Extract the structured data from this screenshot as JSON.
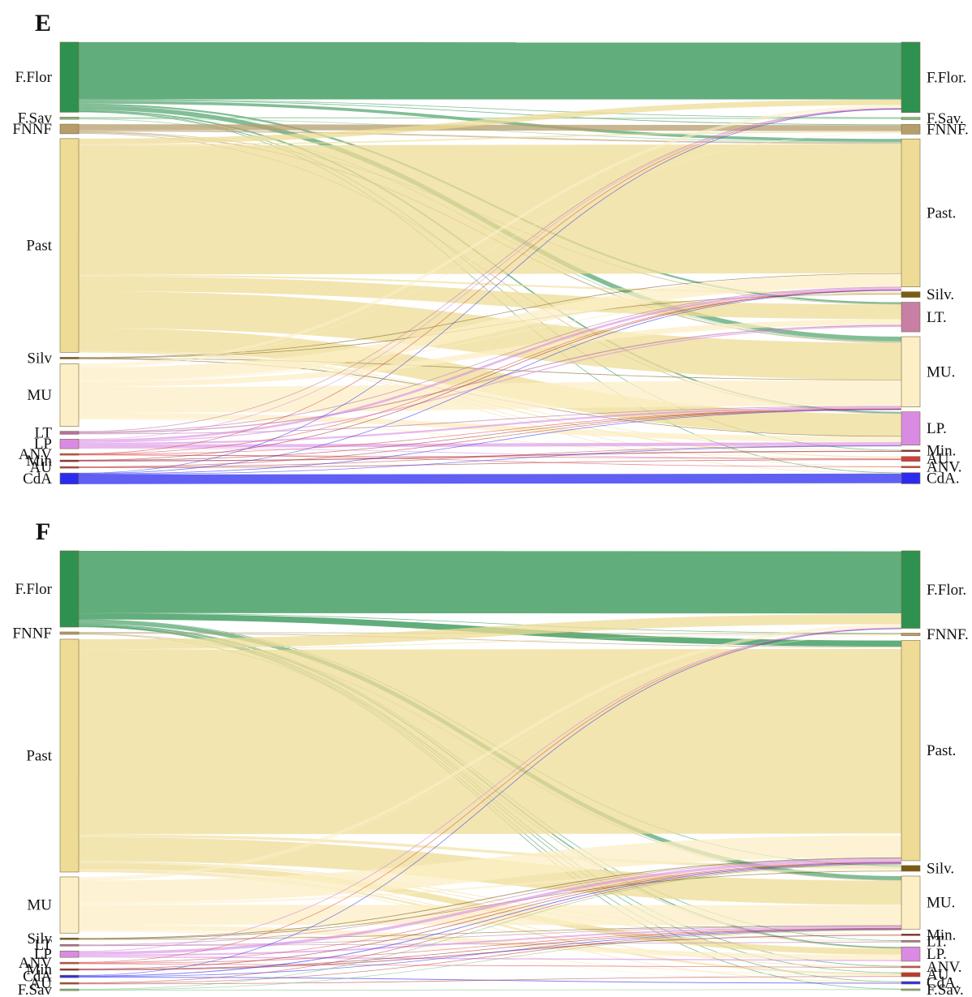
{
  "panels": [
    {
      "label": "E",
      "left_nodes": [
        {
          "id": "F.Flor",
          "label": "F.Flor",
          "color": "#2e9150",
          "value": 19
        },
        {
          "id": "F.Sav",
          "label": "F.Sav",
          "color": "#7cbf84",
          "value": 0.6
        },
        {
          "id": "FNNF",
          "label": "FNNF",
          "color": "#b69e6c",
          "value": 2.6
        },
        {
          "id": "Past",
          "label": "Past",
          "color": "#eedc96",
          "value": 58
        },
        {
          "id": "Silv",
          "label": "Silv",
          "color": "#7a5b14",
          "value": 0.4
        },
        {
          "id": "MU",
          "label": "MU",
          "color": "#fcefc6",
          "value": 17
        },
        {
          "id": "LT",
          "label": "LT",
          "color": "#b86fa2",
          "value": 0.8
        },
        {
          "id": "LP",
          "label": "LP",
          "color": "#d98be4",
          "value": 2.6
        },
        {
          "id": "ANV",
          "label": "ANV",
          "color": "#d94545",
          "value": 0.4
        },
        {
          "id": "Min",
          "label": "Min",
          "color": "#9c2030",
          "value": 0.4
        },
        {
          "id": "AU",
          "label": "AU",
          "color": "#b83c3c",
          "value": 0.4
        },
        {
          "id": "CdA",
          "label": "CdA",
          "color": "#2b2bf0",
          "value": 3
        }
      ],
      "right_nodes": [
        {
          "id": "F.Flor",
          "label": "F.Flor.",
          "color": "#2e9150",
          "value": 19
        },
        {
          "id": "F.Sav",
          "label": "F.Sav.",
          "color": "#7cbf84",
          "value": 0.6
        },
        {
          "id": "FNNF",
          "label": "FNNF.",
          "color": "#b69e6c",
          "value": 2.6
        },
        {
          "id": "Past",
          "label": "Past.",
          "color": "#eedc96",
          "value": 40
        },
        {
          "id": "Silv",
          "label": "Silv.",
          "color": "#7a5b14",
          "value": 1.5
        },
        {
          "id": "LT",
          "label": "LT.",
          "color": "#c77fa6",
          "value": 8
        },
        {
          "id": "MU",
          "label": "MU.",
          "color": "#fcefc6",
          "value": 19
        },
        {
          "id": "LP",
          "label": "LP.",
          "color": "#d98be4",
          "value": 9
        },
        {
          "id": "Min",
          "label": "Min.",
          "color": "#9c2030",
          "value": 0.4
        },
        {
          "id": "AU",
          "label": "AU.",
          "color": "#d33d3d",
          "value": 1.3
        },
        {
          "id": "ANV",
          "label": "ANV.",
          "color": "#d94545",
          "value": 0.4
        },
        {
          "id": "CdA",
          "label": "CdA.",
          "color": "#2b2bf0",
          "value": 3
        }
      ],
      "flows": [
        [
          "F.Flor",
          "F.Flor",
          15.5
        ],
        [
          "F.Flor",
          "Past",
          0.8
        ],
        [
          "F.Flor",
          "MU",
          1.2
        ],
        [
          "F.Flor",
          "LT",
          0.5
        ],
        [
          "F.Flor",
          "LP",
          0.4
        ],
        [
          "F.Flor",
          "FNNF",
          0.2
        ],
        [
          "F.Flor",
          "F.Sav",
          0.15
        ],
        [
          "F.Flor",
          "Min",
          0.1
        ],
        [
          "F.Flor",
          "CdA",
          0.15
        ],
        [
          "F.Sav",
          "F.Sav",
          0.3
        ],
        [
          "F.Sav",
          "Past",
          0.15
        ],
        [
          "F.Sav",
          "MU",
          0.15
        ],
        [
          "FNNF",
          "FNNF",
          1.6
        ],
        [
          "FNNF",
          "Past",
          0.4
        ],
        [
          "FNNF",
          "MU",
          0.3
        ],
        [
          "FNNF",
          "LP",
          0.2
        ],
        [
          "FNNF",
          "LT",
          0.1
        ],
        [
          "Past",
          "Past",
          35
        ],
        [
          "Past",
          "MU",
          10
        ],
        [
          "Past",
          "LT",
          4
        ],
        [
          "Past",
          "LP",
          6
        ],
        [
          "Past",
          "F.Flor",
          1.5
        ],
        [
          "Past",
          "Silv",
          0.5
        ],
        [
          "Past",
          "FNNF",
          0.4
        ],
        [
          "Past",
          "AU",
          0.3
        ],
        [
          "Past",
          "ANV",
          0.1
        ],
        [
          "Past",
          "Min",
          0.1
        ],
        [
          "Past",
          "CdA",
          0.1
        ],
        [
          "Silv",
          "Silv",
          0.15
        ],
        [
          "Silv",
          "Past",
          0.1
        ],
        [
          "Silv",
          "MU",
          0.08
        ],
        [
          "Silv",
          "LP",
          0.07
        ],
        [
          "MU",
          "MU",
          7
        ],
        [
          "MU",
          "Past",
          3.5
        ],
        [
          "MU",
          "LT",
          1.5
        ],
        [
          "MU",
          "LP",
          1.5
        ],
        [
          "MU",
          "F.Flor",
          0.8
        ],
        [
          "MU",
          "Silv",
          0.3
        ],
        [
          "MU",
          "AU",
          0.3
        ],
        [
          "MU",
          "FNNF",
          0.2
        ],
        [
          "LT",
          "LT",
          0.3
        ],
        [
          "LT",
          "Past",
          0.2
        ],
        [
          "LT",
          "MU",
          0.2
        ],
        [
          "LT",
          "F.Flor",
          0.1
        ],
        [
          "LP",
          "LP",
          0.9
        ],
        [
          "LP",
          "Past",
          0.6
        ],
        [
          "LP",
          "MU",
          0.5
        ],
        [
          "LP",
          "LT",
          0.3
        ],
        [
          "LP",
          "F.Flor",
          0.1
        ],
        [
          "LP",
          "AU",
          0.1
        ],
        [
          "ANV",
          "ANV",
          0.1
        ],
        [
          "ANV",
          "Past",
          0.1
        ],
        [
          "ANV",
          "MU",
          0.1
        ],
        [
          "ANV",
          "F.Flor",
          0.05
        ],
        [
          "ANV",
          "AU",
          0.05
        ],
        [
          "Min",
          "Min",
          0.25
        ],
        [
          "Min",
          "Past",
          0.05
        ],
        [
          "Min",
          "MU",
          0.05
        ],
        [
          "AU",
          "AU",
          0.2
        ],
        [
          "AU",
          "MU",
          0.1
        ],
        [
          "AU",
          "LP",
          0.1
        ],
        [
          "CdA",
          "CdA",
          2.6
        ],
        [
          "CdA",
          "F.Flor",
          0.1
        ],
        [
          "CdA",
          "Past",
          0.1
        ],
        [
          "CdA",
          "MU",
          0.1
        ],
        [
          "CdA",
          "LP",
          0.1
        ]
      ]
    },
    {
      "label": "F",
      "left_nodes": [
        {
          "id": "F.Flor",
          "label": "F.Flor",
          "color": "#2e9150",
          "value": 19
        },
        {
          "id": "FNNF",
          "label": "FNNF",
          "color": "#b69e6c",
          "value": 0.6
        },
        {
          "id": "Past",
          "label": "Past",
          "color": "#eedc96",
          "value": 58
        },
        {
          "id": "MU",
          "label": "MU",
          "color": "#fcefc6",
          "value": 14
        },
        {
          "id": "Silv",
          "label": "Silv",
          "color": "#7a5b14",
          "value": 0.4
        },
        {
          "id": "LT",
          "label": "LT",
          "color": "#b86fa2",
          "value": 0.4
        },
        {
          "id": "LP",
          "label": "LP",
          "color": "#d98be4",
          "value": 1.6
        },
        {
          "id": "ANV",
          "label": "ANV",
          "color": "#d94545",
          "value": 0.4
        },
        {
          "id": "Min",
          "label": "Min",
          "color": "#9c2030",
          "value": 0.4
        },
        {
          "id": "CdA",
          "label": "CdA",
          "color": "#2b2bf0",
          "value": 0.6
        },
        {
          "id": "AU",
          "label": "AU",
          "color": "#b83c3c",
          "value": 0.4
        },
        {
          "id": "F.Sav",
          "label": "F.Sav",
          "color": "#7cbf84",
          "value": 0.4
        }
      ],
      "right_nodes": [
        {
          "id": "F.Flor",
          "label": "F.Flor.",
          "color": "#2e9150",
          "value": 19
        },
        {
          "id": "FNNF",
          "label": "FNNF.",
          "color": "#b69e6c",
          "value": 0.6
        },
        {
          "id": "Past",
          "label": "Past.",
          "color": "#eedc96",
          "value": 54
        },
        {
          "id": "Silv",
          "label": "Silv.",
          "color": "#7a5b14",
          "value": 1.4
        },
        {
          "id": "MU",
          "label": "MU.",
          "color": "#fcefc6",
          "value": 13
        },
        {
          "id": "Min",
          "label": "Min.",
          "color": "#9c2030",
          "value": 0.4
        },
        {
          "id": "LT",
          "label": "LT.",
          "color": "#b86fa2",
          "value": 0.4
        },
        {
          "id": "LP",
          "label": "LP.",
          "color": "#d98be4",
          "value": 3.5
        },
        {
          "id": "ANV",
          "label": "ANV.",
          "color": "#d94545",
          "value": 0.4
        },
        {
          "id": "AU",
          "label": "AU.",
          "color": "#c0392b",
          "value": 1
        },
        {
          "id": "CdA",
          "label": "CdA.",
          "color": "#2b2bf0",
          "value": 0.6
        },
        {
          "id": "F.Sav",
          "label": "F.Sav.",
          "color": "#7cbf84",
          "value": 0.4
        }
      ],
      "flows": [
        [
          "F.Flor",
          "F.Flor",
          15.5
        ],
        [
          "F.Flor",
          "Past",
          1.5
        ],
        [
          "F.Flor",
          "MU",
          1.0
        ],
        [
          "F.Flor",
          "LP",
          0.3
        ],
        [
          "F.Flor",
          "FNNF",
          0.1
        ],
        [
          "F.Flor",
          "Silv",
          0.1
        ],
        [
          "F.Flor",
          "LT",
          0.1
        ],
        [
          "F.Flor",
          "ANV",
          0.1
        ],
        [
          "F.Flor",
          "F.Sav",
          0.1
        ],
        [
          "F.Flor",
          "CdA",
          0.1
        ],
        [
          "F.Flor",
          "AU",
          0.1
        ],
        [
          "FNNF",
          "FNNF",
          0.2
        ],
        [
          "FNNF",
          "Past",
          0.2
        ],
        [
          "FNNF",
          "MU",
          0.1
        ],
        [
          "FNNF",
          "LP",
          0.1
        ],
        [
          "Past",
          "Past",
          46
        ],
        [
          "Past",
          "MU",
          6
        ],
        [
          "Past",
          "F.Flor",
          2.5
        ],
        [
          "Past",
          "LP",
          1.5
        ],
        [
          "Past",
          "Silv",
          0.7
        ],
        [
          "Past",
          "AU",
          0.5
        ],
        [
          "Past",
          "Min",
          0.2
        ],
        [
          "Past",
          "LT",
          0.2
        ],
        [
          "Past",
          "ANV",
          0.2
        ],
        [
          "Past",
          "CdA",
          0.1
        ],
        [
          "Past",
          "FNNF",
          0.1
        ],
        [
          "MU",
          "MU",
          5
        ],
        [
          "MU",
          "Past",
          5.5
        ],
        [
          "MU",
          "LP",
          1.3
        ],
        [
          "MU",
          "F.Flor",
          0.8
        ],
        [
          "MU",
          "Silv",
          0.5
        ],
        [
          "MU",
          "AU",
          0.3
        ],
        [
          "MU",
          "FNNF",
          0.1
        ],
        [
          "MU",
          "CdA",
          0.1
        ],
        [
          "Silv",
          "Silv",
          0.1
        ],
        [
          "Silv",
          "Past",
          0.2
        ],
        [
          "Silv",
          "MU",
          0.1
        ],
        [
          "LT",
          "LT",
          0.1
        ],
        [
          "LT",
          "Past",
          0.15
        ],
        [
          "LT",
          "MU",
          0.15
        ],
        [
          "LP",
          "LP",
          0.3
        ],
        [
          "LP",
          "Past",
          0.7
        ],
        [
          "LP",
          "MU",
          0.4
        ],
        [
          "LP",
          "F.Flor",
          0.2
        ],
        [
          "ANV",
          "ANV",
          0.1
        ],
        [
          "ANV",
          "Past",
          0.15
        ],
        [
          "ANV",
          "MU",
          0.1
        ],
        [
          "ANV",
          "F.Flor",
          0.05
        ],
        [
          "Min",
          "Min",
          0.2
        ],
        [
          "Min",
          "Past",
          0.1
        ],
        [
          "Min",
          "MU",
          0.1
        ],
        [
          "CdA",
          "CdA",
          0.2
        ],
        [
          "CdA",
          "Past",
          0.2
        ],
        [
          "CdA",
          "F.Flor",
          0.1
        ],
        [
          "CdA",
          "MU",
          0.1
        ],
        [
          "AU",
          "AU",
          0.1
        ],
        [
          "AU",
          "Past",
          0.15
        ],
        [
          "AU",
          "MU",
          0.15
        ],
        [
          "F.Sav",
          "F.Sav",
          0.1
        ],
        [
          "F.Sav",
          "Past",
          0.15
        ],
        [
          "F.Sav",
          "MU",
          0.15
        ]
      ]
    }
  ]
}
